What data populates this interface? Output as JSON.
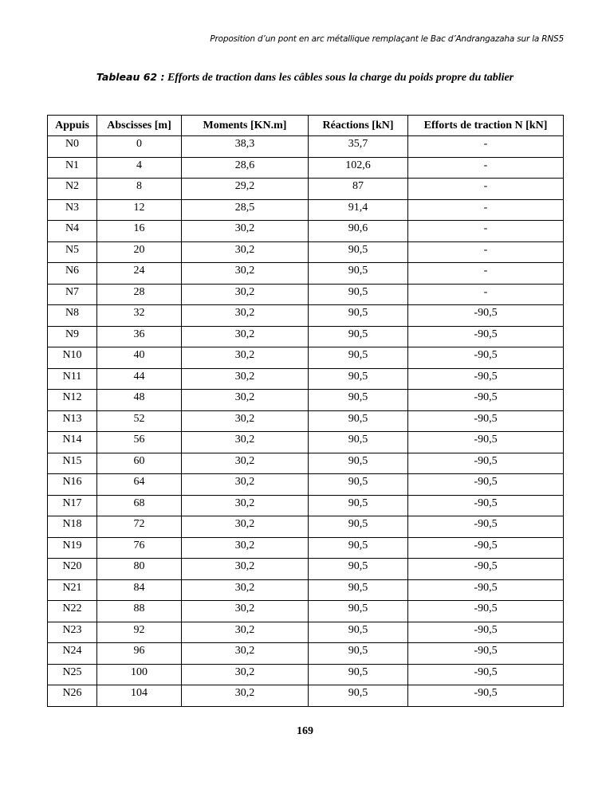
{
  "running_header": "Proposition d’un pont en arc métallique remplaçant le Bac d’Andrangazaha sur la RNS5",
  "caption": {
    "label": "Tableau 62 :",
    "title": " Efforts de traction dans les câbles sous la charge du poids propre du tablier"
  },
  "table": {
    "headers": [
      "Appuis",
      "Abscisses [m]",
      "Moments [KN.m]",
      "Réactions [kN]",
      "Efforts de traction N [kN]"
    ],
    "rows": [
      [
        "N0",
        "0",
        "38,3",
        "35,7",
        "-"
      ],
      [
        "N1",
        "4",
        "28,6",
        "102,6",
        "-"
      ],
      [
        "N2",
        "8",
        "29,2",
        "87",
        "-"
      ],
      [
        "N3",
        "12",
        "28,5",
        "91,4",
        "-"
      ],
      [
        "N4",
        "16",
        "30,2",
        "90,6",
        "-"
      ],
      [
        "N5",
        "20",
        "30,2",
        "90,5",
        "-"
      ],
      [
        "N6",
        "24",
        "30,2",
        "90,5",
        "-"
      ],
      [
        "N7",
        "28",
        "30,2",
        "90,5",
        "-"
      ],
      [
        "N8",
        "32",
        "30,2",
        "90,5",
        "-90,5"
      ],
      [
        "N9",
        "36",
        "30,2",
        "90,5",
        "-90,5"
      ],
      [
        "N10",
        "40",
        "30,2",
        "90,5",
        "-90,5"
      ],
      [
        "N11",
        "44",
        "30,2",
        "90,5",
        "-90,5"
      ],
      [
        "N12",
        "48",
        "30,2",
        "90,5",
        "-90,5"
      ],
      [
        "N13",
        "52",
        "30,2",
        "90,5",
        "-90,5"
      ],
      [
        "N14",
        "56",
        "30,2",
        "90,5",
        "-90,5"
      ],
      [
        "N15",
        "60",
        "30,2",
        "90,5",
        "-90,5"
      ],
      [
        "N16",
        "64",
        "30,2",
        "90,5",
        "-90,5"
      ],
      [
        "N17",
        "68",
        "30,2",
        "90,5",
        "-90,5"
      ],
      [
        "N18",
        "72",
        "30,2",
        "90,5",
        "-90,5"
      ],
      [
        "N19",
        "76",
        "30,2",
        "90,5",
        "-90,5"
      ],
      [
        "N20",
        "80",
        "30,2",
        "90,5",
        "-90,5"
      ],
      [
        "N21",
        "84",
        "30,2",
        "90,5",
        "-90,5"
      ],
      [
        "N22",
        "88",
        "30,2",
        "90,5",
        "-90,5"
      ],
      [
        "N23",
        "92",
        "30,2",
        "90,5",
        "-90,5"
      ],
      [
        "N24",
        "96",
        "30,2",
        "90,5",
        "-90,5"
      ],
      [
        "N25",
        "100",
        "30,2",
        "90,5",
        "-90,5"
      ],
      [
        "N26",
        "104",
        "30,2",
        "90,5",
        "-90,5"
      ]
    ]
  },
  "page_number": "169"
}
